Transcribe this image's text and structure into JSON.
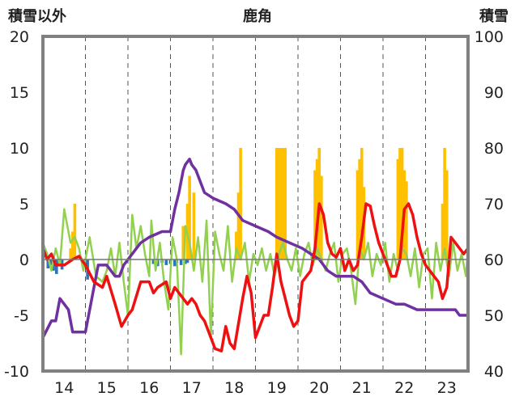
{
  "chart_data": {
    "type": "line",
    "title": "鹿角",
    "ylabel_left": "積雪以外",
    "ylabel_right": "積雪",
    "y_left_range": [
      -10,
      20
    ],
    "y_left_ticks": [
      "20",
      "15",
      "10",
      "5",
      "0",
      "-5",
      "-10"
    ],
    "y_right_range": [
      40,
      100
    ],
    "y_right_ticks": [
      "100",
      "90",
      "80",
      "70",
      "60",
      "50",
      "40"
    ],
    "x_range": [
      13.5,
      23.5
    ],
    "x_ticks": [
      "14",
      "15",
      "16",
      "17",
      "18",
      "19",
      "20",
      "21",
      "22",
      "23"
    ],
    "grid": "vertical dashed",
    "colors": {
      "red": "#ee1111",
      "purple": "#7030a0",
      "green": "#92d050",
      "orange": "#ffc000",
      "blue_bars": "#2e75b6",
      "frame": "#808080"
    },
    "series": [
      {
        "color": "red",
        "axis": "left",
        "x": [
          13.5,
          13.6,
          13.7,
          13.8,
          14.0,
          14.2,
          14.35,
          14.5,
          14.7,
          14.9,
          15.0,
          15.2,
          15.35,
          15.5,
          15.6,
          15.8,
          16.0,
          16.1,
          16.2,
          16.4,
          16.5,
          16.6,
          16.7,
          16.8,
          16.9,
          17.0,
          17.1,
          17.2,
          17.3,
          17.45,
          17.55,
          17.7,
          17.8,
          17.9,
          18.0,
          18.2,
          18.3,
          18.4,
          18.5,
          18.7,
          18.8,
          18.9,
          19.0,
          19.1,
          19.2,
          19.3,
          19.4,
          19.5,
          19.6,
          19.8,
          19.9,
          20.0,
          20.1,
          20.2,
          20.3,
          20.4,
          20.5,
          20.6,
          20.7,
          20.8,
          20.9,
          21.0,
          21.1,
          21.2,
          21.3,
          21.4,
          21.5,
          21.6,
          21.7,
          21.8,
          21.9,
          22.0,
          22.1,
          22.2,
          22.3,
          22.4,
          22.5,
          22.6,
          22.7,
          22.8,
          22.9,
          23.0,
          23.1,
          23.2,
          23.3,
          23.4,
          23.5
        ],
        "values": [
          1.0,
          0.0,
          0.5,
          -0.5,
          -0.5,
          0.0,
          0.3,
          -0.5,
          -2.0,
          -2.5,
          -1.5,
          -4.0,
          -6.0,
          -5.0,
          -4.5,
          -2.0,
          -2.0,
          -3.0,
          -2.5,
          -2.0,
          -3.5,
          -2.5,
          -3.0,
          -3.5,
          -4.0,
          -3.5,
          -4.0,
          -5.0,
          -5.5,
          -7.0,
          -8.0,
          -8.2,
          -6.0,
          -7.5,
          -8.0,
          -3.5,
          -1.5,
          -3.0,
          -7.0,
          -5.0,
          -5.0,
          -2.5,
          0.5,
          -2.0,
          -3.5,
          -5.0,
          -6.0,
          -5.5,
          -2.0,
          -1.0,
          1.0,
          5.0,
          4.0,
          1.5,
          0.5,
          0.2,
          1.0,
          -1.0,
          0.0,
          -1.0,
          -0.5,
          2.0,
          5.0,
          4.8,
          3.0,
          1.5,
          0.5,
          -0.5,
          -1.5,
          -1.5,
          0.0,
          4.5,
          5.0,
          4.0,
          2.0,
          0.5,
          -0.5,
          -1.0,
          -1.5,
          -2.0,
          -3.5,
          -2.5,
          2.0,
          1.5,
          1.0,
          0.5,
          1.0
        ]
      },
      {
        "color": "purple",
        "axis": "left",
        "x": [
          13.5,
          13.7,
          13.8,
          13.9,
          14.0,
          14.1,
          14.2,
          14.3,
          14.5,
          14.8,
          15.0,
          15.1,
          15.2,
          15.3,
          15.4,
          15.6,
          15.8,
          16.0,
          16.3,
          16.5,
          16.6,
          16.7,
          16.8,
          16.85,
          16.95,
          17.0,
          17.1,
          17.3,
          17.5,
          17.8,
          18.0,
          18.2,
          18.5,
          18.8,
          19.0,
          19.3,
          19.6,
          19.8,
          20.0,
          20.2,
          20.4,
          20.6,
          20.8,
          21.0,
          21.2,
          21.5,
          21.8,
          22.0,
          22.3,
          22.6,
          22.8,
          23.0,
          23.2,
          23.3,
          23.5
        ],
        "values": [
          -7.0,
          -5.5,
          -5.5,
          -3.5,
          -4.0,
          -4.5,
          -6.5,
          -6.5,
          -6.5,
          -0.5,
          -0.5,
          -1.0,
          -1.5,
          -1.5,
          -0.5,
          0.5,
          1.5,
          2.0,
          2.5,
          2.5,
          4.5,
          6.0,
          8.0,
          8.5,
          9.0,
          8.5,
          8.0,
          6.0,
          5.5,
          5.0,
          4.5,
          3.5,
          3.0,
          2.5,
          2.0,
          1.5,
          1.0,
          0.5,
          0.0,
          -1.0,
          -1.5,
          -1.5,
          -1.5,
          -2.0,
          -3.0,
          -3.5,
          -4.0,
          -4.0,
          -4.5,
          -4.5,
          -4.5,
          -4.5,
          -4.5,
          -5.0,
          -5.0
        ]
      },
      {
        "color": "green",
        "axis": "left",
        "x": [
          13.5,
          13.6,
          13.7,
          13.8,
          13.9,
          14.0,
          14.05,
          14.15,
          14.25,
          14.35,
          14.45,
          14.6,
          14.75,
          14.9,
          15.0,
          15.1,
          15.2,
          15.3,
          15.4,
          15.5,
          15.6,
          15.7,
          15.8,
          15.9,
          16.0,
          16.05,
          16.15,
          16.25,
          16.35,
          16.45,
          16.55,
          16.65,
          16.75,
          16.85,
          16.95,
          17.05,
          17.15,
          17.25,
          17.35,
          17.45,
          17.55,
          17.65,
          17.75,
          17.85,
          17.95,
          18.05,
          18.15,
          18.25,
          18.35,
          18.45,
          18.55,
          18.65,
          18.75,
          18.85,
          18.95,
          19.05,
          19.15,
          19.25,
          19.35,
          19.45,
          19.55,
          19.65,
          19.75,
          19.85,
          19.95,
          20.05,
          20.15,
          20.25,
          20.35,
          20.45,
          20.55,
          20.65,
          20.75,
          20.85,
          20.95,
          21.05,
          21.15,
          21.25,
          21.35,
          21.45,
          21.55,
          21.65,
          21.75,
          21.85,
          21.95,
          22.05,
          22.15,
          22.25,
          22.35,
          22.45,
          22.55,
          22.65,
          22.75,
          22.85,
          22.95,
          23.05,
          23.15,
          23.25,
          23.35,
          23.45,
          23.5
        ],
        "values": [
          1.5,
          0.5,
          -1.0,
          1.0,
          -0.5,
          4.5,
          3.5,
          1.5,
          2.0,
          1.0,
          -1.0,
          2.0,
          -1.5,
          -2.0,
          -1.0,
          1.0,
          -1.5,
          1.5,
          -2.0,
          -5.0,
          4.0,
          1.0,
          3.0,
          0.5,
          -1.5,
          3.5,
          -1.0,
          1.5,
          -2.0,
          -4.5,
          2.0,
          0.0,
          -8.5,
          3.0,
          1.5,
          -1.0,
          2.0,
          -2.0,
          3.5,
          -7.0,
          2.5,
          0.5,
          -1.0,
          3.0,
          -2.0,
          1.0,
          0.0,
          1.5,
          -2.0,
          0.5,
          -0.5,
          1.0,
          -1.0,
          0.5,
          -1.5,
          0.5,
          1.5,
          0.0,
          -1.0,
          1.0,
          -1.5,
          0.5,
          1.5,
          -0.5,
          1.0,
          0.0,
          -1.0,
          0.5,
          1.5,
          -2.0,
          0.5,
          1.0,
          -1.0,
          -4.0,
          1.0,
          0.0,
          1.5,
          -1.5,
          0.5,
          -0.5,
          1.5,
          -2.0,
          0.5,
          -1.0,
          1.0,
          0.5,
          -1.5,
          1.0,
          -2.5,
          0.5,
          1.0,
          -3.5,
          1.5,
          -1.0,
          1.0,
          -1.5,
          1.5,
          -1.0,
          0.5,
          -1.5,
          1.0
        ]
      }
    ],
    "bars": [
      {
        "color": "orange",
        "axis": "right",
        "x": [
          14.15,
          14.2,
          14.25,
          16.8,
          16.9,
          16.95,
          17.05,
          18.05,
          18.1,
          18.15,
          19.0,
          19.05,
          19.1,
          19.15,
          19.2,
          19.9,
          19.95,
          20.0,
          20.05,
          20.9,
          20.95,
          21.0,
          21.05,
          21.85,
          21.9,
          21.95,
          22.0,
          22.05,
          22.9,
          22.95,
          23.0
        ],
        "values": [
          62,
          65,
          70,
          66,
          70,
          75,
          72,
          65,
          72,
          80,
          80,
          80,
          80,
          80,
          80,
          76,
          78,
          80,
          75,
          76,
          78,
          80,
          73,
          78,
          80,
          80,
          76,
          74,
          70,
          80,
          76
        ]
      },
      {
        "color": "blue_bars",
        "axis": "left",
        "x": [
          13.62,
          13.68,
          13.75,
          13.82,
          13.88,
          13.95,
          14.5,
          14.55,
          16.1,
          16.2,
          16.3,
          16.4,
          16.5,
          16.6,
          16.65,
          16.75,
          16.85,
          16.9
        ],
        "values": [
          -0.8,
          -0.5,
          -1.0,
          -1.3,
          -0.6,
          -0.9,
          -0.6,
          -1.8,
          -0.4,
          -0.6,
          -0.3,
          -0.5,
          -0.4,
          -0.6,
          -0.3,
          -0.5,
          -0.4,
          -0.3
        ]
      }
    ]
  }
}
